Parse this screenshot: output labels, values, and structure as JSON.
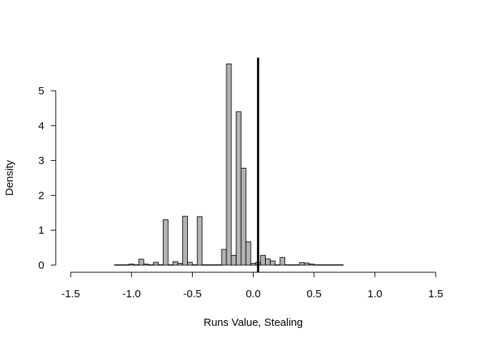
{
  "chart_data": {
    "type": "bar",
    "title": "",
    "xlabel": "Runs Value, Stealing",
    "ylabel": "Density",
    "xlim": [
      -1.5,
      1.5
    ],
    "ylim": [
      0,
      6
    ],
    "bin_width": 0.04,
    "bin_start": -1.14,
    "x_ticks": [
      "-1.5",
      "-1.0",
      "-0.5",
      "0.0",
      "0.5",
      "1.0",
      "1.5"
    ],
    "x_tick_values": [
      -1.5,
      -1.0,
      -0.5,
      0.0,
      0.5,
      1.0,
      1.5
    ],
    "y_ticks": [
      "0",
      "1",
      "2",
      "3",
      "4",
      "5"
    ],
    "y_tick_values": [
      0,
      1,
      2,
      3,
      4,
      5
    ],
    "values": [
      0.01,
      0.01,
      0.01,
      0.03,
      0.01,
      0.17,
      0.03,
      0.01,
      0.08,
      0.01,
      1.3,
      0.01,
      0.1,
      0.05,
      1.4,
      0.08,
      0.01,
      1.39,
      0.01,
      0.01,
      0.01,
      0.01,
      0.45,
      5.77,
      0.28,
      4.4,
      2.78,
      0.67,
      0.05,
      0.08,
      0.28,
      0.18,
      0.12,
      0.01,
      0.22,
      0.01,
      0.01,
      0.01,
      0.07,
      0.06,
      0.03,
      0.01,
      0.01,
      0.01,
      0.01,
      0.01,
      0.01
    ],
    "reference_line_x": 0.04,
    "bar_color": "#b3b3b3",
    "bar_edge_color": "#000000",
    "reference_line_color": "#000000",
    "grid": false,
    "legend": "none"
  }
}
